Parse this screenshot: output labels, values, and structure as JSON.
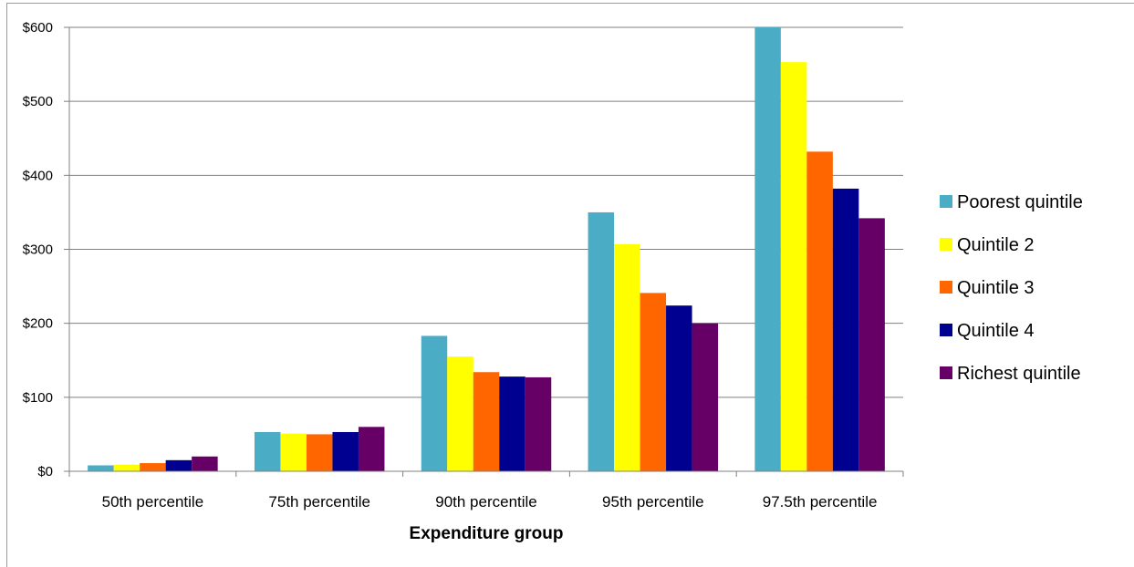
{
  "chart_data": {
    "type": "bar",
    "title": "",
    "xlabel": "Expenditure group",
    "ylabel": "",
    "ylim": [
      0,
      600
    ],
    "yticks": [
      "$0",
      "$100",
      "$200",
      "$300",
      "$400",
      "$500",
      "$600"
    ],
    "ytick_values": [
      0,
      100,
      200,
      300,
      400,
      500,
      600
    ],
    "grid": true,
    "legend_position": "right",
    "categories": [
      "50th percentile",
      "75th percentile",
      "90th percentile",
      "95th percentile",
      "97.5th percentile"
    ],
    "series": [
      {
        "name": "Poorest quintile",
        "color": "#4bacc6",
        "values": [
          8,
          53,
          183,
          350,
          600
        ]
      },
      {
        "name": "Quintile 2",
        "color": "#ffff00",
        "values": [
          9,
          51,
          155,
          307,
          553
        ]
      },
      {
        "name": "Quintile 3",
        "color": "#ff6600",
        "values": [
          11,
          50,
          134,
          241,
          432
        ]
      },
      {
        "name": "Quintile 4",
        "color": "#000090",
        "values": [
          15,
          53,
          128,
          224,
          382
        ]
      },
      {
        "name": "Richest quintile",
        "color": "#660066",
        "values": [
          20,
          60,
          127,
          200,
          342
        ]
      }
    ]
  }
}
